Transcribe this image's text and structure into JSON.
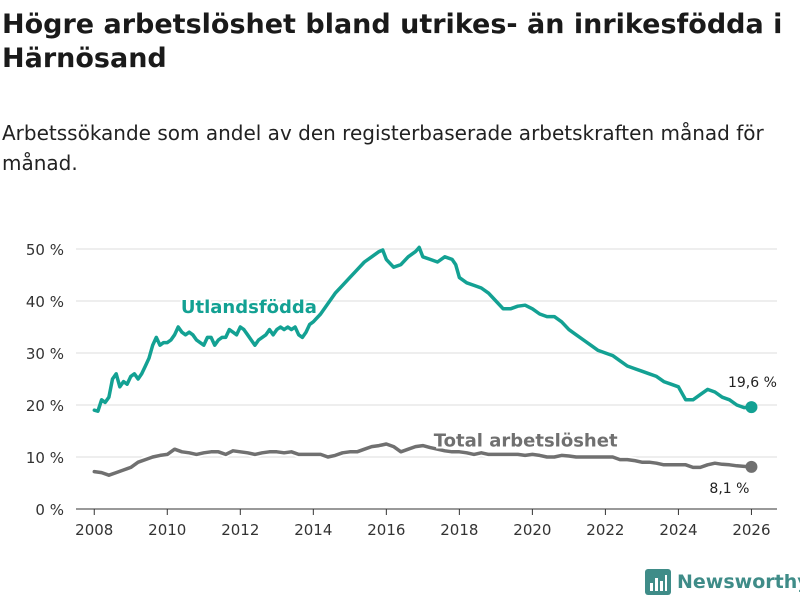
{
  "title": "Högre arbetslöshet bland utrikes- än inrikesfödda i Härnösand",
  "subtitle": "Arbetssökande som andel av den registerbaserade arbetskraften månad för månad.",
  "brand": {
    "name": "Newsworthy"
  },
  "colors": {
    "foreign": "#13a193",
    "total": "#707070",
    "grid": "#dddddd",
    "axis": "#333333"
  },
  "chart_data": {
    "type": "line",
    "title": "Högre arbetslöshet bland utrikes- än inrikesfödda i Härnösand",
    "xlabel": "",
    "ylabel": "",
    "xlim": [
      2007.5,
      2026.7
    ],
    "ylim": [
      0,
      50
    ],
    "y_ticks": [
      0,
      10,
      20,
      30,
      40,
      50
    ],
    "y_tick_labels": [
      "0 %",
      "10 %",
      "20 %",
      "30 %",
      "40 %",
      "50 %"
    ],
    "x_ticks": [
      2008,
      2010,
      2012,
      2014,
      2016,
      2018,
      2020,
      2022,
      2024,
      2026
    ],
    "x_tick_labels": [
      "2008",
      "2010",
      "2012",
      "2014",
      "2016",
      "2018",
      "2020",
      "2022",
      "2024",
      "2026"
    ],
    "series": [
      {
        "name": "Utlandsfödda",
        "label": "Utlandsfödda",
        "end_label": "19,6 %",
        "color": "#13a193",
        "x": [
          2008.0,
          2008.1,
          2008.2,
          2008.3,
          2008.4,
          2008.5,
          2008.6,
          2008.7,
          2008.8,
          2008.9,
          2009.0,
          2009.1,
          2009.2,
          2009.3,
          2009.4,
          2009.5,
          2009.6,
          2009.7,
          2009.8,
          2009.9,
          2010.0,
          2010.1,
          2010.2,
          2010.3,
          2010.4,
          2010.5,
          2010.6,
          2010.7,
          2010.8,
          2010.9,
          2011.0,
          2011.1,
          2011.2,
          2011.3,
          2011.4,
          2011.5,
          2011.6,
          2011.7,
          2011.8,
          2011.9,
          2012.0,
          2012.1,
          2012.2,
          2012.3,
          2012.4,
          2012.5,
          2012.6,
          2012.7,
          2012.8,
          2012.9,
          2013.0,
          2013.1,
          2013.2,
          2013.3,
          2013.4,
          2013.5,
          2013.6,
          2013.7,
          2013.8,
          2013.9,
          2014.0,
          2014.2,
          2014.4,
          2014.6,
          2014.8,
          2015.0,
          2015.2,
          2015.4,
          2015.6,
          2015.8,
          2015.9,
          2016.0,
          2016.2,
          2016.4,
          2016.6,
          2016.8,
          2016.9,
          2017.0,
          2017.2,
          2017.4,
          2017.6,
          2017.8,
          2017.9,
          2018.0,
          2018.2,
          2018.4,
          2018.6,
          2018.8,
          2019.0,
          2019.2,
          2019.4,
          2019.6,
          2019.8,
          2020.0,
          2020.2,
          2020.4,
          2020.6,
          2020.8,
          2021.0,
          2021.2,
          2021.4,
          2021.6,
          2021.8,
          2022.0,
          2022.2,
          2022.4,
          2022.6,
          2022.8,
          2023.0,
          2023.2,
          2023.4,
          2023.6,
          2023.8,
          2024.0,
          2024.2,
          2024.4,
          2024.6,
          2024.8,
          2025.0,
          2025.2,
          2025.4,
          2025.6,
          2025.8,
          2026.0
        ],
        "y": [
          19.0,
          18.8,
          21.0,
          20.5,
          21.5,
          25.0,
          26.0,
          23.5,
          24.5,
          24.0,
          25.5,
          26.0,
          25.0,
          26.0,
          27.5,
          29.0,
          31.5,
          33.0,
          31.5,
          32.0,
          32.0,
          32.5,
          33.5,
          35.0,
          34.0,
          33.5,
          34.0,
          33.5,
          32.5,
          32.0,
          31.5,
          33.0,
          33.0,
          31.5,
          32.5,
          33.0,
          33.0,
          34.5,
          34.0,
          33.5,
          35.0,
          34.5,
          33.5,
          32.5,
          31.5,
          32.5,
          33.0,
          33.5,
          34.5,
          33.5,
          34.5,
          35.0,
          34.5,
          35.0,
          34.5,
          35.0,
          33.5,
          33.0,
          34.0,
          35.5,
          36.0,
          37.5,
          39.5,
          41.5,
          43.0,
          44.5,
          46.0,
          47.5,
          48.5,
          49.5,
          49.8,
          48.0,
          46.5,
          47.0,
          48.5,
          49.5,
          50.3,
          48.5,
          48.0,
          47.5,
          48.5,
          48.0,
          47.0,
          44.5,
          43.5,
          43.0,
          42.5,
          41.5,
          40.0,
          38.5,
          38.5,
          39.0,
          39.2,
          38.5,
          37.5,
          37.0,
          37.0,
          36.0,
          34.5,
          33.5,
          32.5,
          31.5,
          30.5,
          30.0,
          29.5,
          28.5,
          27.5,
          27.0,
          26.5,
          26.0,
          25.5,
          24.5,
          24.0,
          23.5,
          21.0,
          21.0,
          22.0,
          23.0,
          22.5,
          21.5,
          21.0,
          20.0,
          19.5,
          19.6
        ]
      },
      {
        "name": "Total arbetslöshet",
        "label": "Total arbetslöshet",
        "end_label": "8,1 %",
        "color": "#707070",
        "x": [
          2008.0,
          2008.2,
          2008.4,
          2008.6,
          2008.8,
          2009.0,
          2009.2,
          2009.4,
          2009.6,
          2009.8,
          2010.0,
          2010.2,
          2010.4,
          2010.6,
          2010.8,
          2011.0,
          2011.2,
          2011.4,
          2011.6,
          2011.8,
          2012.0,
          2012.2,
          2012.4,
          2012.6,
          2012.8,
          2013.0,
          2013.2,
          2013.4,
          2013.6,
          2013.8,
          2014.0,
          2014.2,
          2014.4,
          2014.6,
          2014.8,
          2015.0,
          2015.2,
          2015.4,
          2015.6,
          2015.8,
          2016.0,
          2016.2,
          2016.4,
          2016.6,
          2016.8,
          2017.0,
          2017.2,
          2017.4,
          2017.6,
          2017.8,
          2018.0,
          2018.2,
          2018.4,
          2018.6,
          2018.8,
          2019.0,
          2019.2,
          2019.4,
          2019.6,
          2019.8,
          2020.0,
          2020.2,
          2020.4,
          2020.6,
          2020.8,
          2021.0,
          2021.2,
          2021.4,
          2021.6,
          2021.8,
          2022.0,
          2022.2,
          2022.4,
          2022.6,
          2022.8,
          2023.0,
          2023.2,
          2023.4,
          2023.6,
          2023.8,
          2024.0,
          2024.2,
          2024.4,
          2024.6,
          2024.8,
          2025.0,
          2025.2,
          2025.4,
          2025.6,
          2025.8,
          2026.0
        ],
        "y": [
          7.2,
          7.0,
          6.5,
          7.0,
          7.5,
          8.0,
          9.0,
          9.5,
          10.0,
          10.3,
          10.5,
          11.5,
          11.0,
          10.8,
          10.5,
          10.8,
          11.0,
          11.0,
          10.5,
          11.2,
          11.0,
          10.8,
          10.5,
          10.8,
          11.0,
          11.0,
          10.8,
          11.0,
          10.5,
          10.5,
          10.5,
          10.5,
          10.0,
          10.3,
          10.8,
          11.0,
          11.0,
          11.5,
          12.0,
          12.2,
          12.5,
          12.0,
          11.0,
          11.5,
          12.0,
          12.2,
          11.8,
          11.5,
          11.2,
          11.0,
          11.0,
          10.8,
          10.5,
          10.8,
          10.5,
          10.5,
          10.5,
          10.5,
          10.5,
          10.3,
          10.5,
          10.3,
          10.0,
          10.0,
          10.3,
          10.2,
          10.0,
          10.0,
          10.0,
          10.0,
          10.0,
          10.0,
          9.5,
          9.5,
          9.3,
          9.0,
          9.0,
          8.8,
          8.5,
          8.5,
          8.5,
          8.5,
          8.0,
          8.0,
          8.5,
          8.8,
          8.6,
          8.5,
          8.3,
          8.2,
          8.1
        ]
      }
    ]
  }
}
